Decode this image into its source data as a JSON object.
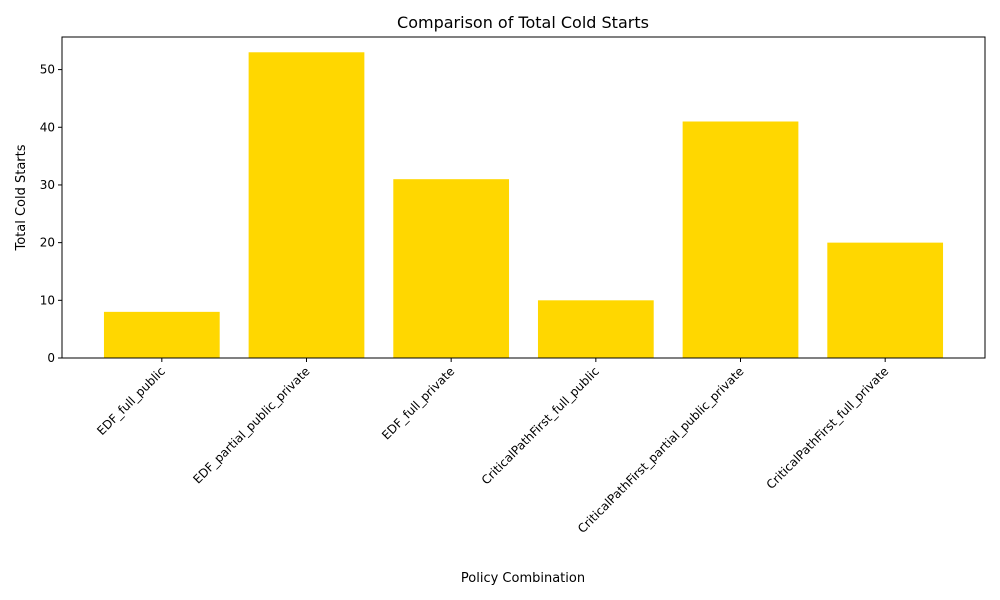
{
  "chart_data": {
    "type": "bar",
    "title": "Comparison of Total Cold Starts",
    "xlabel": "Policy Combination",
    "ylabel": "Total Cold Starts",
    "categories": [
      "EDF_full_public",
      "EDF_partial_public_private",
      "EDF_full_private",
      "CriticalPathFirst_full_public",
      "CriticalPathFirst_partial_public_private",
      "CriticalPathFirst_full_private"
    ],
    "values": [
      8,
      53,
      31,
      10,
      41,
      20
    ],
    "ylim": [
      0,
      55.65
    ],
    "yticks": [
      0,
      10,
      20,
      30,
      40,
      50
    ],
    "bar_color": "#ffd700",
    "grid": false,
    "legend": false
  }
}
